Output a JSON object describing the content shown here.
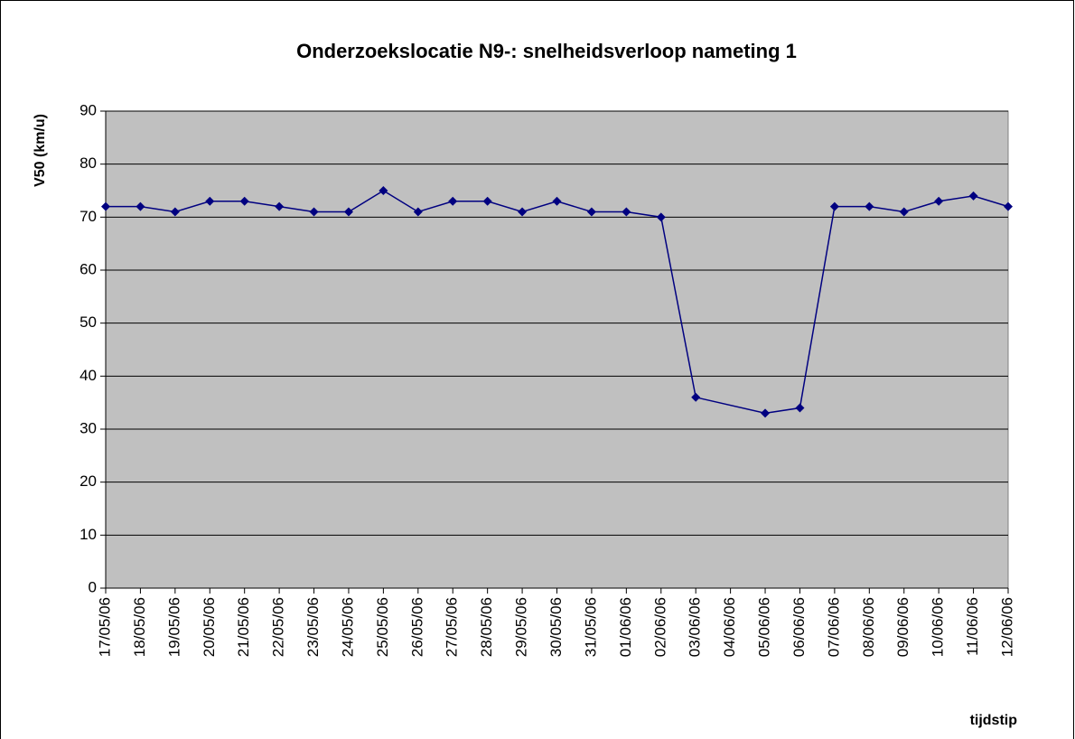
{
  "chart_data": {
    "type": "line",
    "title": "Onderzoekslocatie N9-: snelheidsverloop nameting 1",
    "y_label": "V50 (km/u)",
    "x_label": "tijdstip",
    "x": [
      "17/05/06",
      "18/05/06",
      "19/05/06",
      "20/05/06",
      "21/05/06",
      "22/05/06",
      "23/05/06",
      "24/05/06",
      "25/05/06",
      "26/05/06",
      "27/05/06",
      "28/05/06",
      "29/05/06",
      "30/05/06",
      "31/05/06",
      "01/06/06",
      "02/06/06",
      "03/06/06",
      "05/06/06",
      "06/06/06",
      "07/06/06",
      "08/06/06",
      "09/06/06",
      "10/06/06",
      "11/06/06",
      "12/06/06"
    ],
    "values": [
      72,
      72,
      71,
      73,
      73,
      72,
      71,
      71,
      75,
      71,
      73,
      73,
      71,
      73,
      71,
      71,
      70,
      36,
      33,
      34,
      72,
      72,
      71,
      73,
      74,
      72
    ],
    "color": "#000080",
    "xlim": [
      "17/05/06",
      "12/06/06"
    ],
    "xticks": [
      "17/05/06",
      "18/05/06",
      "19/05/06",
      "20/05/06",
      "21/05/06",
      "22/05/06",
      "23/05/06",
      "24/05/06",
      "25/05/06",
      "26/05/06",
      "27/05/06",
      "28/05/06",
      "29/05/06",
      "30/05/06",
      "31/05/06",
      "01/06/06",
      "02/06/06",
      "03/06/06",
      "04/06/06",
      "05/06/06",
      "06/06/06",
      "07/06/06",
      "08/06/06",
      "09/06/06",
      "10/06/06",
      "11/06/06",
      "12/06/06"
    ],
    "ylim": [
      0,
      90
    ],
    "yticks": [
      0,
      10,
      20,
      30,
      40,
      50,
      60,
      70,
      80,
      90
    ],
    "grid": true,
    "plot_background": "#c0c0c0"
  }
}
